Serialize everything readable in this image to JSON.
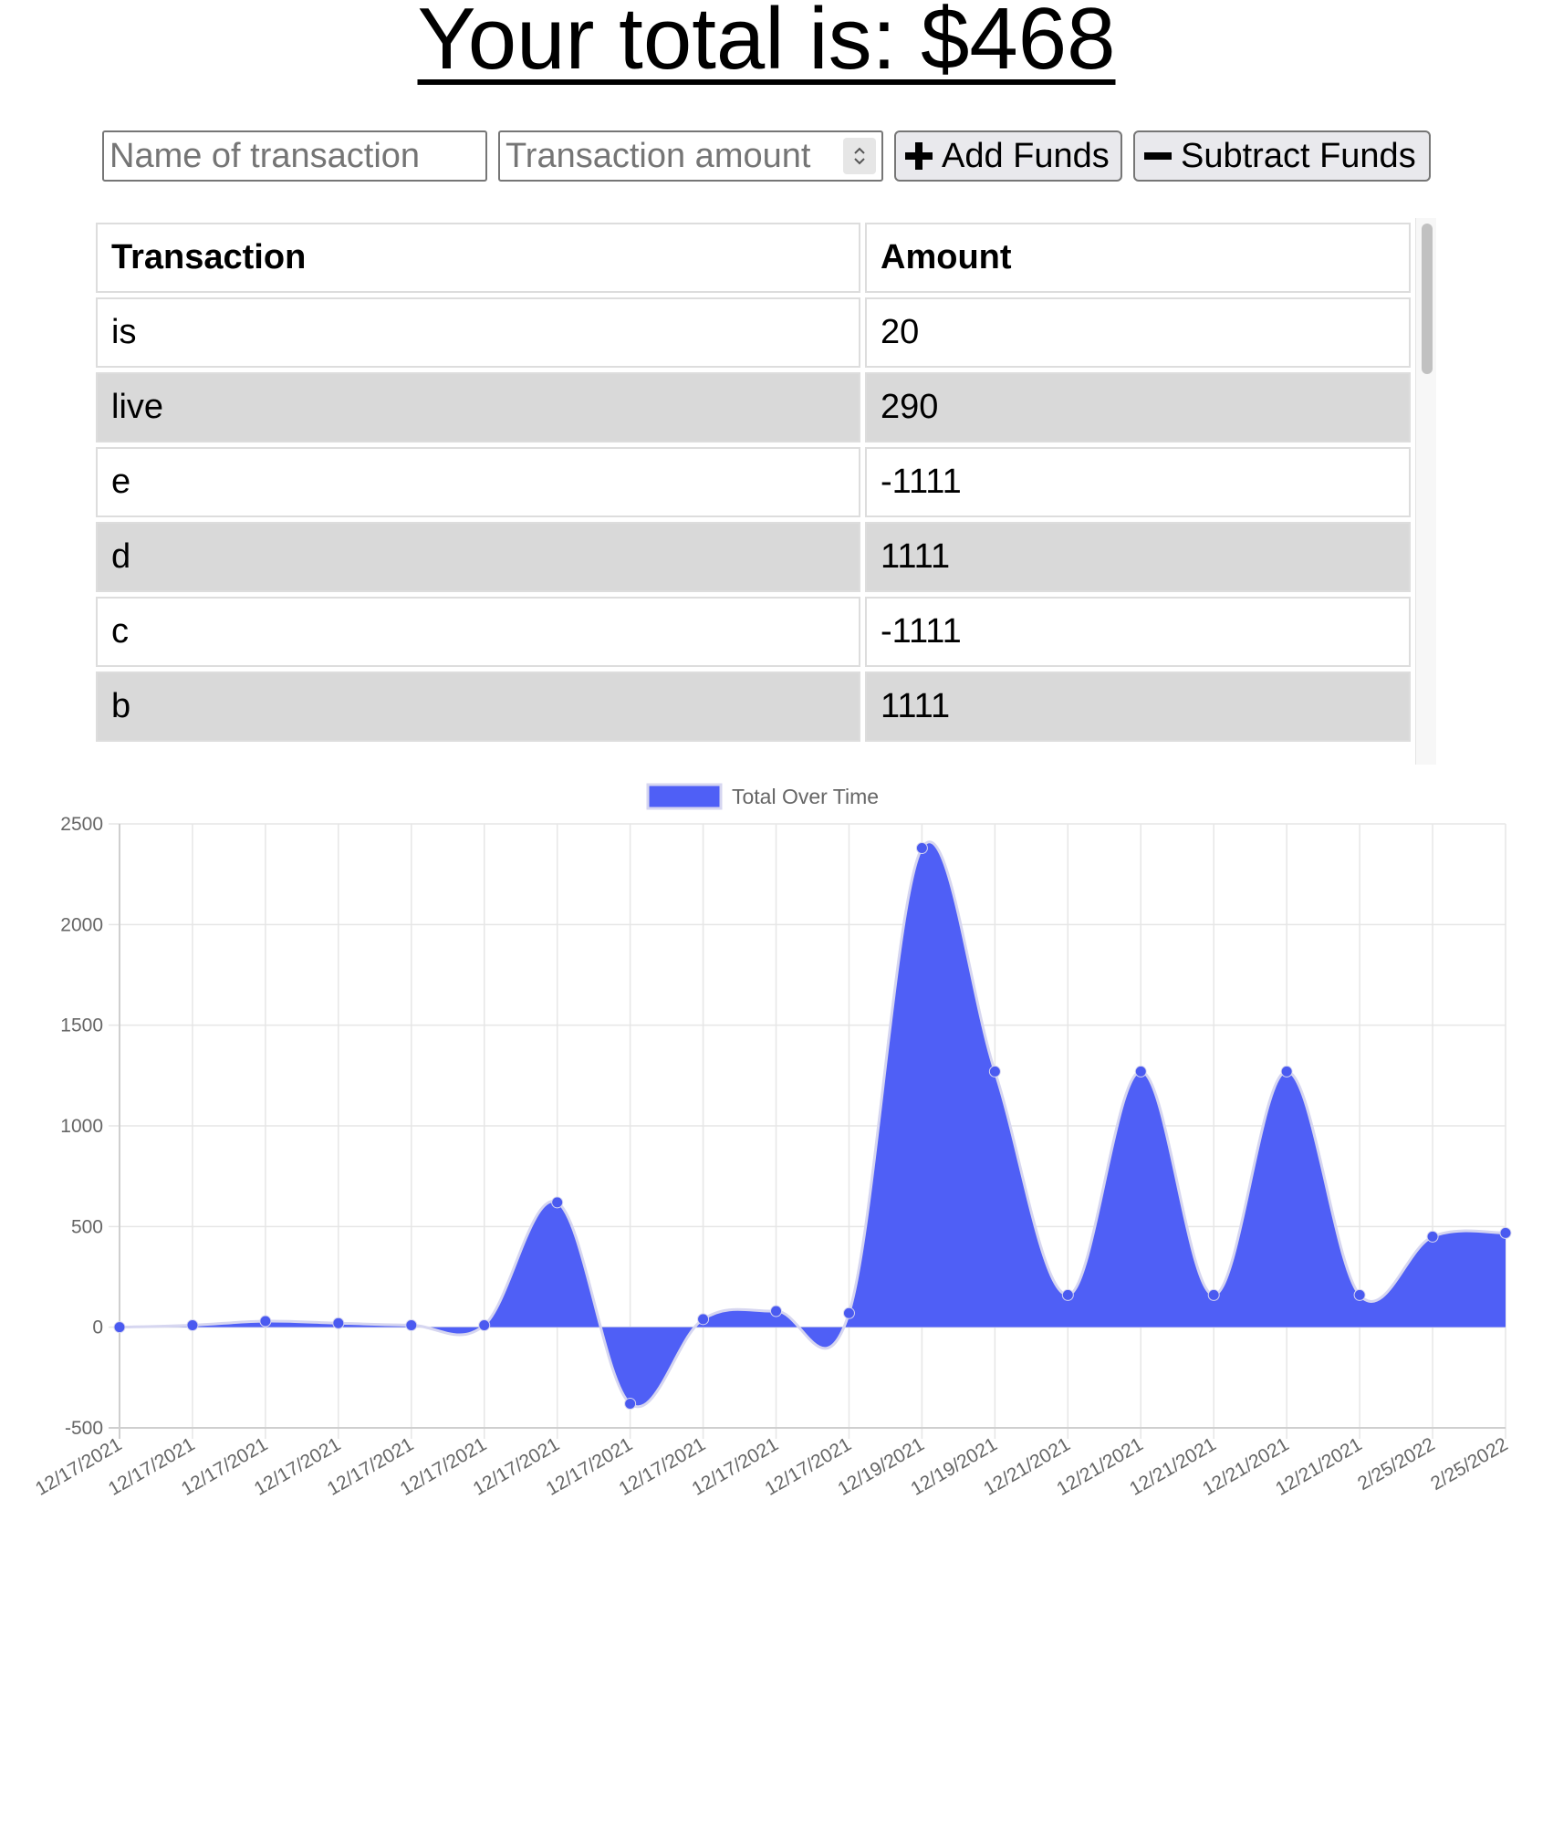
{
  "header": {
    "total_text": "Your total is: $468"
  },
  "form": {
    "name_placeholder": "Name of transaction",
    "amount_placeholder": "Transaction amount",
    "add_label": "Add Funds",
    "subtract_label": "Subtract Funds"
  },
  "table": {
    "headers": [
      "Transaction",
      "Amount"
    ],
    "rows": [
      {
        "name": "is",
        "amount": "20"
      },
      {
        "name": "live",
        "amount": "290"
      },
      {
        "name": "e",
        "amount": "-1111"
      },
      {
        "name": "d",
        "amount": "1111"
      },
      {
        "name": "c",
        "amount": "-1111"
      },
      {
        "name": "b",
        "amount": "1111"
      }
    ]
  },
  "icons": {
    "add": "plus-icon",
    "subtract": "minus-icon",
    "spinner": "number-spinner-icon"
  },
  "colors": {
    "series_fill": "#4f5ff6",
    "series_line": "#d6d6f0",
    "point": "#4a5af0",
    "grid": "#e6e6e6",
    "axis": "#cfcfcf",
    "tick_text": "#666666",
    "row_alt": "#d9d9d9"
  },
  "chart_data": {
    "type": "area",
    "legend": {
      "label": "Total Over Time",
      "position": "top"
    },
    "x": [
      "12/17/2021",
      "12/17/2021",
      "12/17/2021",
      "12/17/2021",
      "12/17/2021",
      "12/17/2021",
      "12/17/2021",
      "12/17/2021",
      "12/17/2021",
      "12/17/2021",
      "12/17/2021",
      "12/19/2021",
      "12/19/2021",
      "12/21/2021",
      "12/21/2021",
      "12/21/2021",
      "12/21/2021",
      "12/21/2021",
      "2/25/2022",
      "2/25/2022"
    ],
    "series": [
      {
        "name": "Total Over Time",
        "values": [
          0,
          10,
          30,
          20,
          10,
          10,
          620,
          -380,
          40,
          80,
          70,
          2380,
          1270,
          160,
          1270,
          160,
          1270,
          160,
          450,
          468
        ]
      }
    ],
    "ylim": [
      -500,
      2500
    ],
    "yticks": [
      2500,
      2000,
      1500,
      1000,
      500,
      0,
      -500
    ],
    "grid": true,
    "smooth": true
  }
}
